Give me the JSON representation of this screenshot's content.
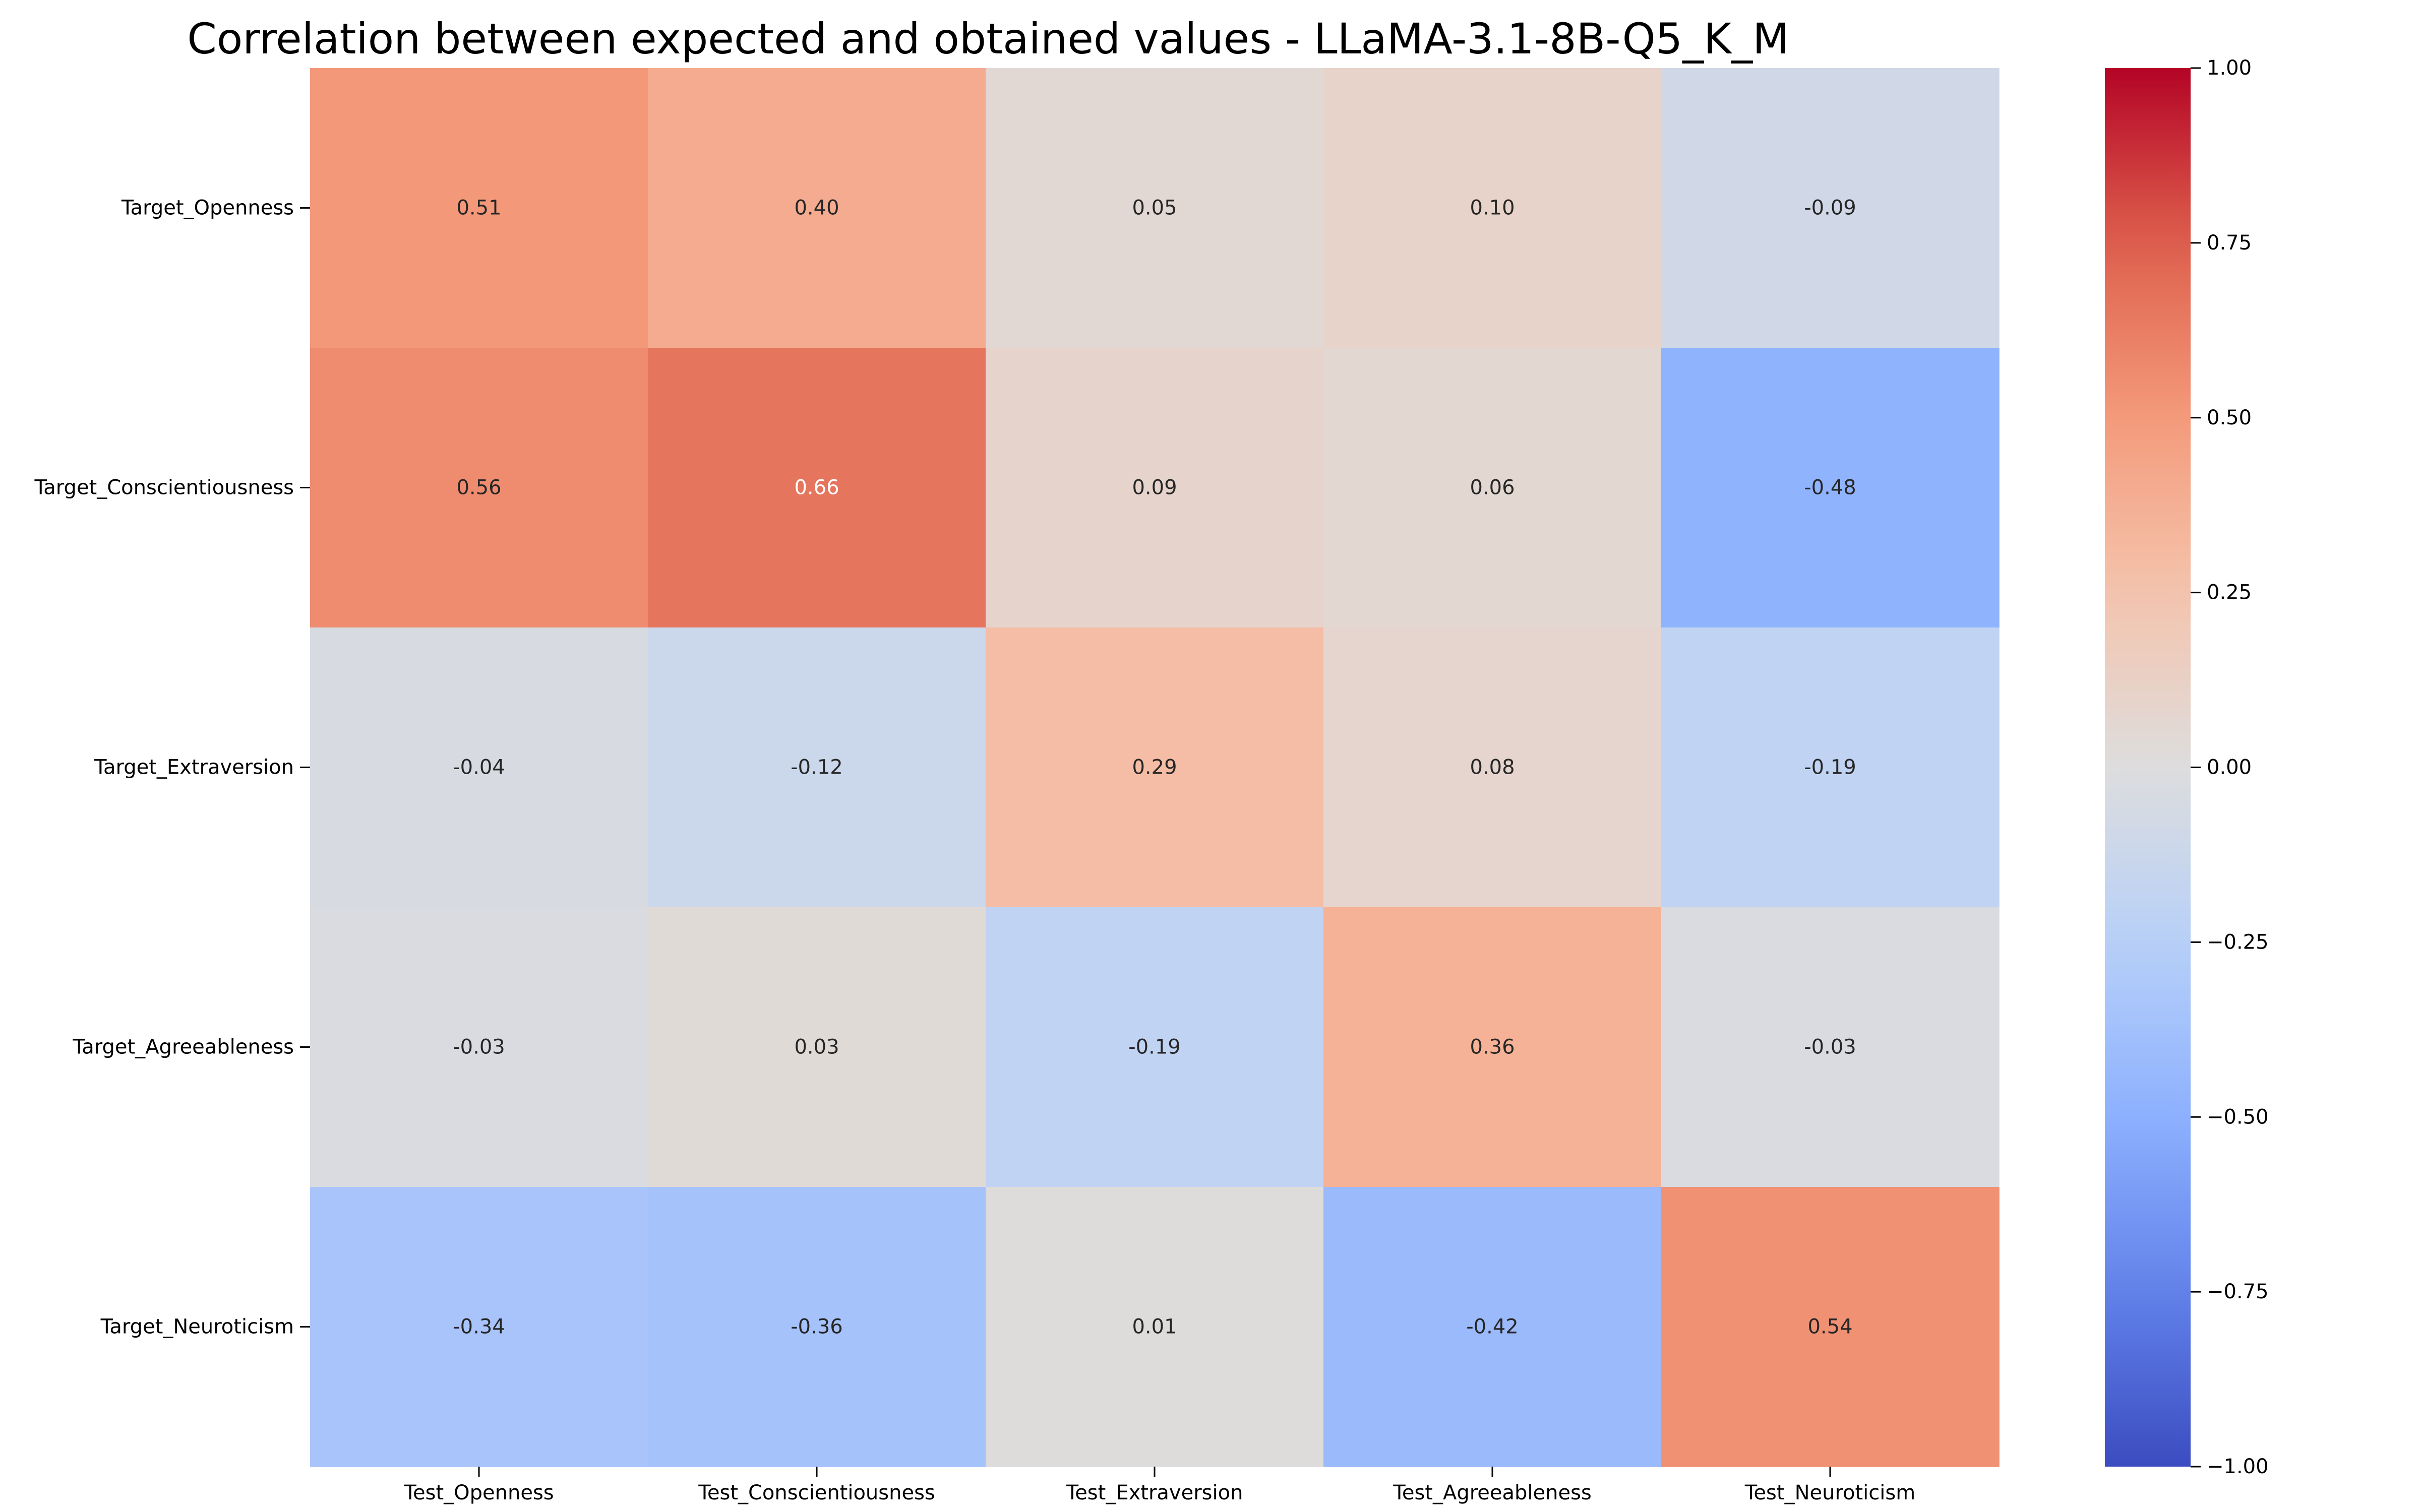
{
  "chart_data": {
    "type": "heatmap",
    "title": "Correlation between expected and obtained values - LLaMA-3.1-8B-Q5_K_M",
    "xlabel": "",
    "ylabel": "",
    "x_categories": [
      "Test_Openness",
      "Test_Conscientiousness",
      "Test_Extraversion",
      "Test_Agreeableness",
      "Test_Neuroticism"
    ],
    "y_categories": [
      "Target_Openness",
      "Target_Conscientiousness",
      "Target_Extraversion",
      "Target_Agreeableness",
      "Target_Neuroticism"
    ],
    "values": [
      [
        0.51,
        0.4,
        0.05,
        0.1,
        -0.09
      ],
      [
        0.56,
        0.66,
        0.09,
        0.06,
        -0.48
      ],
      [
        -0.04,
        -0.12,
        0.29,
        0.08,
        -0.19
      ],
      [
        -0.03,
        0.03,
        -0.19,
        0.36,
        -0.03
      ],
      [
        -0.34,
        -0.36,
        0.01,
        -0.42,
        0.54
      ]
    ],
    "value_labels": [
      [
        "0.51",
        "0.40",
        "0.05",
        "0.10",
        "-0.09"
      ],
      [
        "0.56",
        "0.66",
        "0.09",
        "0.06",
        "-0.48"
      ],
      [
        "-0.04",
        "-0.12",
        "0.29",
        "0.08",
        "-0.19"
      ],
      [
        "-0.03",
        "0.03",
        "-0.19",
        "0.36",
        "-0.03"
      ],
      [
        "-0.34",
        "-0.36",
        "0.01",
        "-0.42",
        "0.54"
      ]
    ],
    "colormap": "coolwarm",
    "vmin": -1.0,
    "vmax": 1.0,
    "colorbar_ticks": [
      1.0,
      0.75,
      0.5,
      0.25,
      0.0,
      -0.25,
      -0.5,
      -0.75,
      -1.0
    ],
    "colorbar_tick_labels": [
      "1.00",
      "0.75",
      "0.50",
      "0.25",
      "0.00",
      "−0.25",
      "−0.50",
      "−0.75",
      "−1.00"
    ],
    "grid": false,
    "legend": "colorbar-right"
  }
}
